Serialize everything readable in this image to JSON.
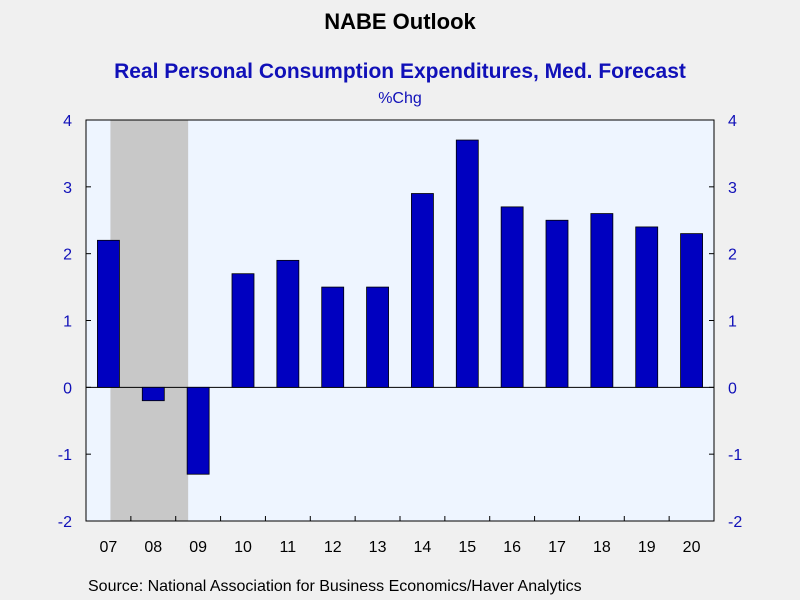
{
  "header": {
    "title": "NABE Outlook",
    "subtitle": "Real Personal Consumption Expenditures, Med. Forecast",
    "unit": "%Chg"
  },
  "footer": {
    "source": "Source:  National Association for Business Economics/Haver Analytics"
  },
  "colors": {
    "bar": "#0000c0",
    "plot_background": "#eef5ff",
    "recession_shade": "#c8c8c8",
    "tick_text": "#1010b8"
  },
  "chart_data": {
    "type": "bar",
    "title": "NABE Outlook",
    "subtitle": "Real Personal Consumption Expenditures, Med. Forecast",
    "ylabel": "%Chg",
    "categories": [
      "07",
      "08",
      "09",
      "10",
      "11",
      "12",
      "13",
      "14",
      "15",
      "16",
      "17",
      "18",
      "19",
      "20"
    ],
    "values": [
      2.2,
      -0.2,
      -1.3,
      1.7,
      1.9,
      1.5,
      1.5,
      2.9,
      3.7,
      2.7,
      2.5,
      2.6,
      2.4,
      2.3
    ],
    "ylim": [
      -2,
      4
    ],
    "yticks": [
      4,
      3,
      2,
      1,
      0,
      -1,
      -2
    ],
    "ytick_labels": [
      "4",
      "3",
      "2",
      "1",
      "0",
      "-1",
      "-2"
    ],
    "right_axis": true,
    "shaded_period": [
      "08",
      "09"
    ],
    "grid": false,
    "legend": "none"
  }
}
